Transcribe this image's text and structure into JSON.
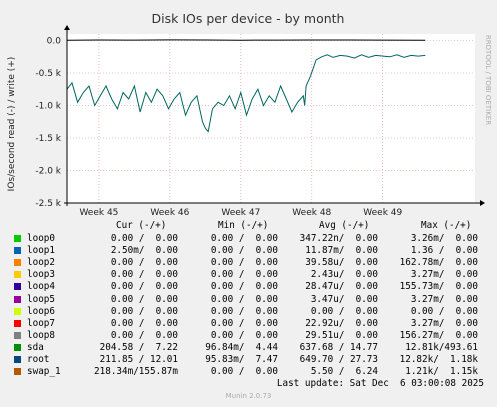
{
  "chart_data": {
    "type": "line",
    "title": "Disk IOs per device - by month",
    "ylabel": "IOs/second read (-) / write (+)",
    "side_label": "RRDTOOL / TOBI OETIKER",
    "y_ticks": [
      "0.0",
      "-0.5 k",
      "-1.0 k",
      "-1.5 k",
      "-2.0 k",
      "-2.5 k"
    ],
    "y_tick_values": [
      0,
      -500,
      -1000,
      -1500,
      -2000,
      -2500
    ],
    "ylim": [
      -2500,
      100
    ],
    "x_ticks": [
      "Week 45",
      "Week 46",
      "Week 47",
      "Week 48",
      "Week 49"
    ],
    "x_tick_positions": [
      45,
      46,
      47,
      48,
      49
    ],
    "xlim": [
      44.55,
      50.3
    ],
    "grid": true,
    "series": [
      {
        "name": "sda",
        "color": "#00665e",
        "x": [
          44.55,
          44.62,
          44.7,
          44.78,
          44.86,
          44.94,
          45.02,
          45.1,
          45.18,
          45.26,
          45.34,
          45.42,
          45.5,
          45.58,
          45.66,
          45.74,
          45.82,
          45.9,
          45.98,
          46.06,
          46.14,
          46.22,
          46.3,
          46.38,
          46.46,
          46.5,
          46.54,
          46.6,
          46.68,
          46.76,
          46.84,
          46.92,
          47.0,
          47.08,
          47.16,
          47.24,
          47.32,
          47.4,
          47.48,
          47.56,
          47.64,
          47.72,
          47.8,
          47.88,
          47.9,
          47.92,
          47.98,
          48.06,
          48.14,
          48.22,
          48.3,
          48.4,
          48.5,
          48.6,
          48.7,
          48.8,
          48.9,
          49.0,
          49.1,
          49.2,
          49.3,
          49.4,
          49.5,
          49.6
        ],
        "values": [
          -750,
          -650,
          -950,
          -800,
          -700,
          -1000,
          -850,
          -700,
          -900,
          -1050,
          -800,
          -900,
          -700,
          -1100,
          -800,
          -950,
          -750,
          -850,
          -1050,
          -900,
          -800,
          -1150,
          -950,
          -850,
          -1250,
          -1350,
          -1400,
          -1050,
          -950,
          -1000,
          -850,
          -1050,
          -800,
          -1150,
          -900,
          -750,
          -1000,
          -850,
          -950,
          -700,
          -900,
          -1100,
          -950,
          -850,
          -1000,
          -700,
          -550,
          -300,
          -250,
          -220,
          -260,
          -230,
          -240,
          -270,
          -220,
          -260,
          -230,
          -240,
          -250,
          -220,
          -260,
          -230,
          -240,
          -230
        ]
      },
      {
        "name": "root",
        "color": "#000000",
        "x": [
          44.55,
          45.0,
          45.5,
          46.0,
          46.5,
          47.0,
          47.5,
          48.0,
          48.5,
          49.0,
          49.6
        ],
        "values": [
          5,
          8,
          6,
          9,
          7,
          5,
          6,
          8,
          7,
          6,
          5
        ]
      }
    ]
  },
  "legend": {
    "headers": {
      "cur": "Cur (-/+)",
      "min": "Min (-/+)",
      "avg": "Avg (-/+)",
      "max": "Max (-/+)"
    },
    "rows": [
      {
        "name": "loop0",
        "color": "#00cc00",
        "cur": "0.00 /  0.00",
        "min": "0.00 /  0.00",
        "avg": "347.22n/  0.00",
        "max": "3.26m/  0.00"
      },
      {
        "name": "loop1",
        "color": "#0066b3",
        "cur": "2.50m/  0.00",
        "min": "0.00 /  0.00",
        "avg": "11.87m/  0.00",
        "max": "1.36 /  0.00"
      },
      {
        "name": "loop2",
        "color": "#ff8000",
        "cur": "0.00 /  0.00",
        "min": "0.00 /  0.00",
        "avg": "39.58u/  0.00",
        "max": "162.78m/  0.00"
      },
      {
        "name": "loop3",
        "color": "#ffcc00",
        "cur": "0.00 /  0.00",
        "min": "0.00 /  0.00",
        "avg": "2.43u/  0.00",
        "max": "3.27m/  0.00"
      },
      {
        "name": "loop4",
        "color": "#330099",
        "cur": "0.00 /  0.00",
        "min": "0.00 /  0.00",
        "avg": "28.47u/  0.00",
        "max": "155.73m/  0.00"
      },
      {
        "name": "loop5",
        "color": "#990099",
        "cur": "0.00 /  0.00",
        "min": "0.00 /  0.00",
        "avg": "3.47u/  0.00",
        "max": "3.27m/  0.00"
      },
      {
        "name": "loop6",
        "color": "#ccff00",
        "cur": "0.00 /  0.00",
        "min": "0.00 /  0.00",
        "avg": "0.00 /  0.00",
        "max": "0.00 /  0.00"
      },
      {
        "name": "loop7",
        "color": "#ff0000",
        "cur": "0.00 /  0.00",
        "min": "0.00 /  0.00",
        "avg": "22.92u/  0.00",
        "max": "3.27m/  0.00"
      },
      {
        "name": "loop8",
        "color": "#808080",
        "cur": "0.00 /  0.00",
        "min": "0.00 /  0.00",
        "avg": "29.51u/  0.00",
        "max": "156.27m/  0.00"
      },
      {
        "name": "sda",
        "color": "#008f00",
        "cur": "204.58 /  7.22",
        "min": "96.84m/  4.44",
        "avg": "637.68 / 14.77",
        "max": "12.81k/493.61"
      },
      {
        "name": "root",
        "color": "#00487d",
        "cur": "211.85 / 12.01",
        "min": "95.83m/  7.47",
        "avg": "649.70 / 27.73",
        "max": "12.82k/  1.18k"
      },
      {
        "name": "swap_1",
        "color": "#b35a00",
        "cur": "218.34m/155.87m",
        "min": "0.00 /  0.00",
        "avg": "5.50 /  6.24",
        "max": "1.21k/  1.15k"
      }
    ]
  },
  "last_update": "Last update: Sat Dec  6 03:00:08 2025",
  "footer": "Munin 2.0.73"
}
